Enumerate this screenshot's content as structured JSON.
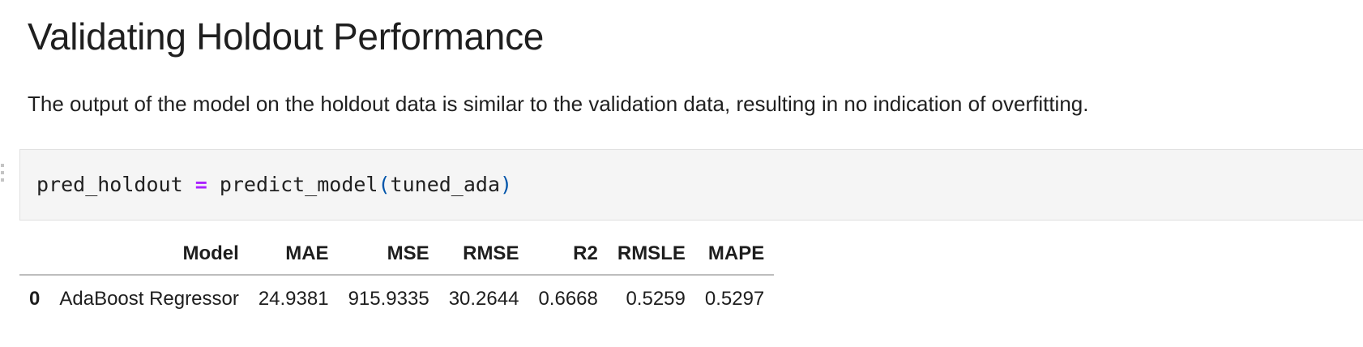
{
  "markdown": {
    "heading": "Validating Holdout Performance",
    "paragraph": "The output of the model on the holdout data is similar to the validation data, resulting in no indication of overfitting."
  },
  "code_cell": {
    "var": "pred_holdout",
    "op": "=",
    "func": "predict_model",
    "open_paren": "(",
    "arg": "tuned_ada",
    "close_paren": ")"
  },
  "output_table": {
    "index_header": "",
    "columns": [
      "Model",
      "MAE",
      "MSE",
      "RMSE",
      "R2",
      "RMSLE",
      "MAPE"
    ],
    "rows": [
      {
        "index": "0",
        "cells": [
          "AdaBoost Regressor",
          "24.9381",
          "915.9335",
          "30.2644",
          "0.6668",
          "0.5259",
          "0.5297"
        ]
      }
    ]
  }
}
